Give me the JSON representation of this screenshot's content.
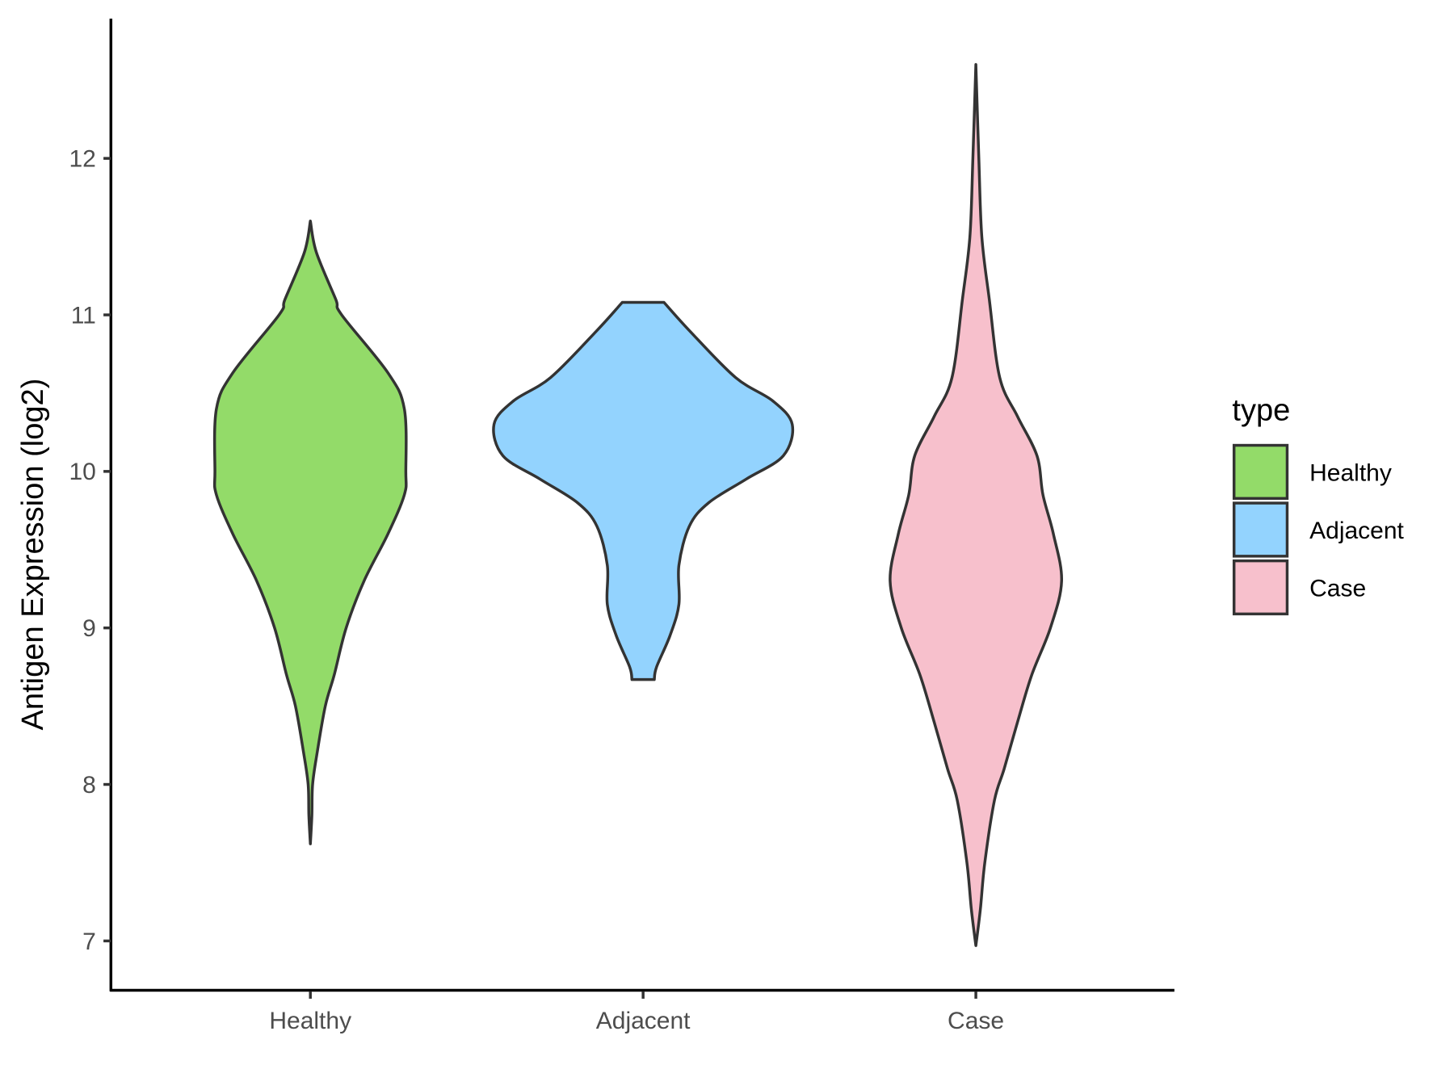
{
  "chart_data": {
    "type": "violin",
    "title": "",
    "xlabel": "",
    "ylabel": "Antigen Expression (log2)",
    "ylim": [
      6.1,
      12.9
    ],
    "yticks": [
      7,
      8,
      9,
      10,
      11,
      12
    ],
    "categories": [
      "Healthy",
      "Adjacent",
      "Case"
    ],
    "colors": {
      "Healthy": "#93DB69",
      "Adjacent": "#93D3FE",
      "Case": "#F7C0CC"
    },
    "outline_color": "#333333",
    "legend": {
      "title": "type",
      "entries": [
        "Healthy",
        "Adjacent",
        "Case"
      ],
      "placement": "right"
    },
    "series": [
      {
        "name": "Healthy",
        "min": 7.62,
        "max": 11.6,
        "density_profile": [
          [
            11.6,
            0
          ],
          [
            11.4,
            0.04
          ],
          [
            11.1,
            0.17
          ],
          [
            11.0,
            0.21
          ],
          [
            10.63,
            0.52
          ],
          [
            10.4,
            0.63
          ],
          [
            10.0,
            0.64
          ],
          [
            9.85,
            0.63
          ],
          [
            9.6,
            0.52
          ],
          [
            9.3,
            0.36
          ],
          [
            9.0,
            0.24
          ],
          [
            8.7,
            0.16
          ],
          [
            8.5,
            0.1
          ],
          [
            8.2,
            0.045
          ],
          [
            8.0,
            0.015
          ],
          [
            7.8,
            0.01
          ],
          [
            7.62,
            0
          ]
        ]
      },
      {
        "name": "Adjacent",
        "min": 8.67,
        "max": 11.08,
        "density_profile": [
          [
            11.08,
            0.14
          ],
          [
            10.9,
            0.31
          ],
          [
            10.6,
            0.62
          ],
          [
            10.45,
            0.87
          ],
          [
            10.3,
            1.0
          ],
          [
            10.1,
            0.94
          ],
          [
            9.95,
            0.69
          ],
          [
            9.8,
            0.44
          ],
          [
            9.65,
            0.31
          ],
          [
            9.4,
            0.24
          ],
          [
            9.15,
            0.24
          ],
          [
            8.95,
            0.18
          ],
          [
            8.75,
            0.09
          ],
          [
            8.67,
            0.075
          ]
        ]
      },
      {
        "name": "Case",
        "min": 6.97,
        "max": 12.6,
        "density_profile": [
          [
            12.6,
            0
          ],
          [
            12.0,
            0.02
          ],
          [
            11.5,
            0.04
          ],
          [
            11.1,
            0.09
          ],
          [
            10.6,
            0.16
          ],
          [
            10.35,
            0.28
          ],
          [
            10.1,
            0.41
          ],
          [
            9.85,
            0.45
          ],
          [
            9.6,
            0.52
          ],
          [
            9.3,
            0.575
          ],
          [
            9.0,
            0.5
          ],
          [
            8.7,
            0.375
          ],
          [
            8.4,
            0.28
          ],
          [
            8.1,
            0.19
          ],
          [
            7.9,
            0.125
          ],
          [
            7.5,
            0.06
          ],
          [
            7.2,
            0.03
          ],
          [
            6.97,
            0
          ]
        ]
      }
    ]
  }
}
